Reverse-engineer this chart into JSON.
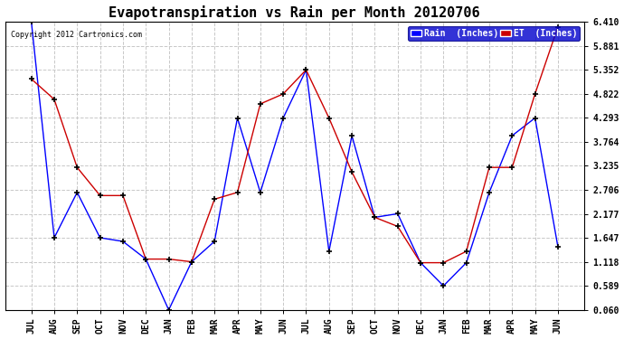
{
  "title": "Evapotranspiration vs Rain per Month 20120706",
  "copyright": "Copyright 2012 Cartronics.com",
  "x_labels": [
    "JUL",
    "AUG",
    "SEP",
    "OCT",
    "NOV",
    "DEC",
    "JAN",
    "FEB",
    "MAR",
    "APR",
    "MAY",
    "JUN",
    "JUL",
    "AUG",
    "SEP",
    "OCT",
    "NOV",
    "DEC",
    "JAN",
    "FEB",
    "MAR",
    "APR",
    "MAY",
    "JUN"
  ],
  "rain_values": [
    6.41,
    1.65,
    2.65,
    1.65,
    1.57,
    1.18,
    0.06,
    1.12,
    1.57,
    4.29,
    2.65,
    4.29,
    5.35,
    1.35,
    3.9,
    2.1,
    2.18,
    1.1,
    0.589,
    1.1,
    2.65,
    3.9,
    4.29,
    1.45
  ],
  "et_values": [
    5.15,
    4.7,
    3.2,
    2.58,
    2.58,
    1.18,
    1.18,
    1.12,
    2.5,
    2.65,
    4.6,
    4.82,
    5.35,
    4.29,
    3.1,
    2.1,
    1.9,
    1.1,
    1.1,
    1.35,
    3.2,
    3.2,
    4.82,
    6.3
  ],
  "rain_color": "#0000ff",
  "et_color": "#cc0000",
  "ylim": [
    0.06,
    6.41
  ],
  "yticks": [
    0.06,
    0.589,
    1.118,
    1.647,
    2.177,
    2.706,
    3.235,
    3.764,
    4.293,
    4.822,
    5.352,
    5.881,
    6.41
  ],
  "bg_color": "#ffffff",
  "grid_color": "#c8c8c8",
  "legend_rain_label": "Rain  (Inches)",
  "legend_et_label": "ET  (Inches)",
  "title_fontsize": 11,
  "label_fontsize": 7,
  "marker": "+"
}
